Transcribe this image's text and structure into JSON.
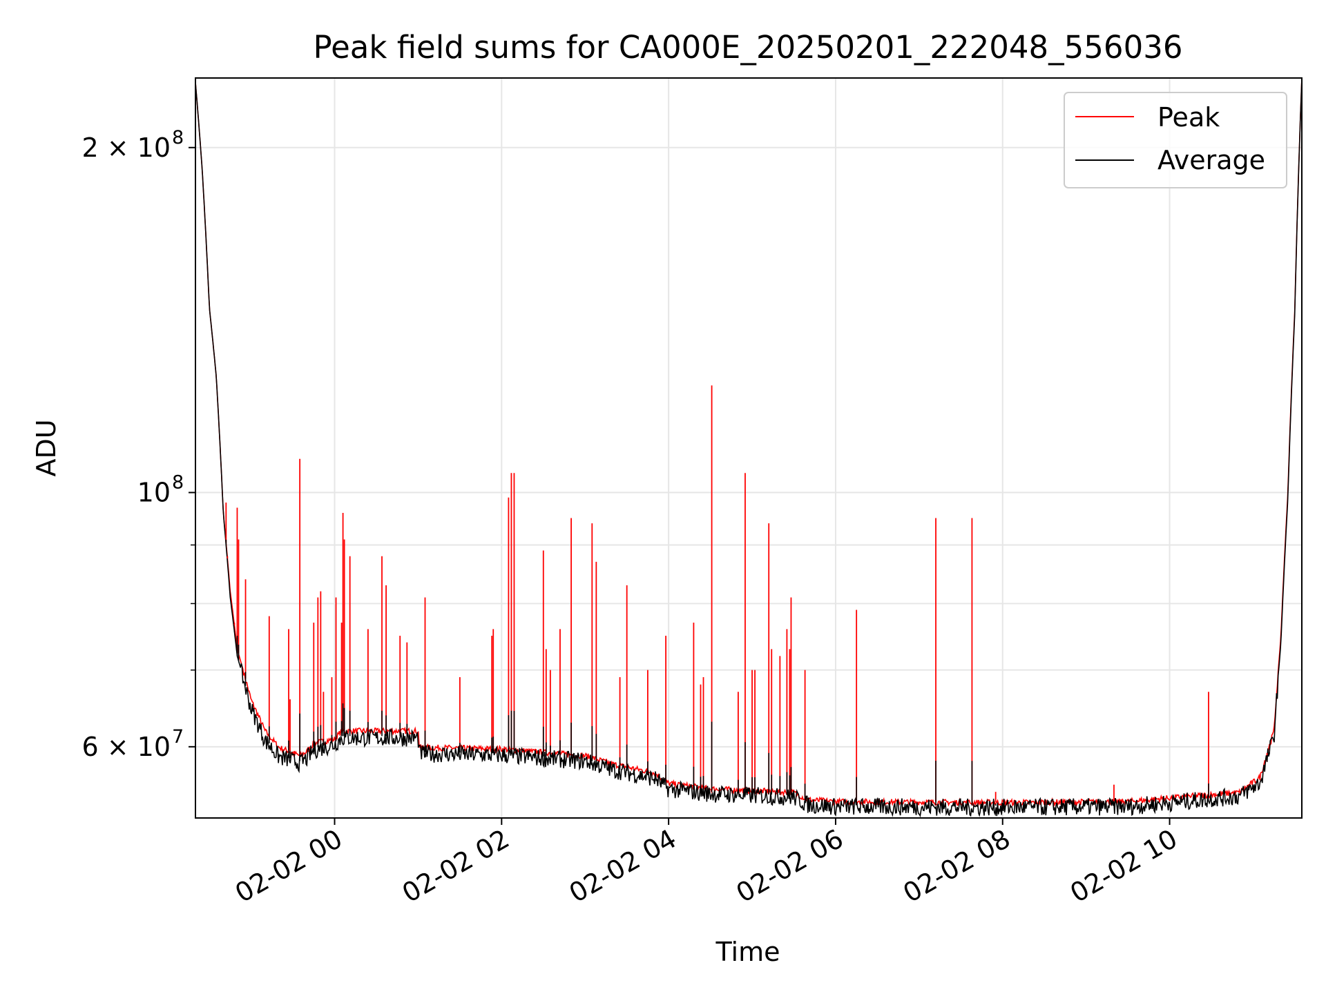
{
  "chart_data": {
    "type": "line",
    "title": "Peak field sums for CA000E_20250201_222048_556036",
    "xlabel": "Time",
    "ylabel": "ADU",
    "yscale": "log",
    "grid": true,
    "legend_position": "top-right",
    "x_range": [
      "2025-02-01 22:20",
      "2025-02-02 11:35"
    ],
    "ylim": [
      52000000,
      230000000
    ],
    "x_ticks": [
      {
        "t": "2025-02-02 00:00",
        "label": "02-02 00"
      },
      {
        "t": "2025-02-02 02:00",
        "label": "02-02 02"
      },
      {
        "t": "2025-02-02 04:00",
        "label": "02-02 04"
      },
      {
        "t": "2025-02-02 06:00",
        "label": "02-02 06"
      },
      {
        "t": "2025-02-02 08:00",
        "label": "02-02 08"
      },
      {
        "t": "2025-02-02 10:00",
        "label": "02-02 10"
      }
    ],
    "y_ticks": [
      {
        "value": 60000000,
        "base": "6 × 10",
        "exp": "7"
      },
      {
        "value": 100000000,
        "base": "10",
        "exp": "8"
      },
      {
        "value": 200000000,
        "base": "2 × 10",
        "exp": "8"
      }
    ],
    "series": [
      {
        "name": "Peak",
        "color": "#ff0000",
        "points": [
          [
            "2025-02-01 22:20",
            228000000
          ],
          [
            "2025-02-01 22:25",
            190000000
          ],
          [
            "2025-02-01 22:30",
            145000000
          ],
          [
            "2025-02-01 22:35",
            126000000
          ],
          [
            "2025-02-01 22:40",
            96000000
          ],
          [
            "2025-02-01 22:45",
            82000000
          ],
          [
            "2025-02-01 22:50",
            73000000
          ],
          [
            "2025-02-01 23:00",
            66000000
          ],
          [
            "2025-02-01 23:10",
            62000000
          ],
          [
            "2025-02-01 23:20",
            60000000
          ],
          [
            "2025-02-01 23:35",
            59000000
          ],
          [
            "2025-02-01 23:40",
            59500000
          ],
          [
            "2025-02-01 23:45",
            60500000
          ],
          [
            "2025-02-02 00:00",
            61000000
          ],
          [
            "2025-02-02 00:05",
            62000000
          ],
          [
            "2025-02-02 01:00",
            62000000
          ],
          [
            "2025-02-02 01:01",
            60000000
          ],
          [
            "2025-02-02 02:00",
            59800000
          ],
          [
            "2025-02-02 03:00",
            59000000
          ],
          [
            "2025-02-02 03:20",
            58000000
          ],
          [
            "2025-02-02 03:50",
            57000000
          ],
          [
            "2025-02-02 04:00",
            55800000
          ],
          [
            "2025-02-02 04:30",
            55200000
          ],
          [
            "2025-02-02 05:30",
            54800000
          ],
          [
            "2025-02-02 05:40",
            54000000
          ],
          [
            "2025-02-02 06:00",
            53800000
          ],
          [
            "2025-02-02 08:00",
            53700000
          ],
          [
            "2025-02-02 09:30",
            53800000
          ],
          [
            "2025-02-02 10:00",
            54200000
          ],
          [
            "2025-02-02 10:50",
            54800000
          ],
          [
            "2025-02-02 11:05",
            56500000
          ],
          [
            "2025-02-02 11:15",
            62000000
          ],
          [
            "2025-02-02 11:20",
            75000000
          ],
          [
            "2025-02-02 11:25",
            100000000
          ],
          [
            "2025-02-02 11:30",
            145000000
          ],
          [
            "2025-02-02 11:35",
            230000000
          ]
        ],
        "spikes": [
          [
            "2025-02-01 22:42",
            98000000
          ],
          [
            "2025-02-01 22:43",
            88000000
          ],
          [
            "2025-02-01 22:48",
            77000000
          ],
          [
            "2025-02-01 22:50",
            97000000
          ],
          [
            "2025-02-01 22:51",
            91000000
          ],
          [
            "2025-02-01 22:56",
            84000000
          ],
          [
            "2025-02-01 23:13",
            78000000
          ],
          [
            "2025-02-01 23:27",
            76000000
          ],
          [
            "2025-02-01 23:28",
            66000000
          ],
          [
            "2025-02-01 23:35",
            107000000
          ],
          [
            "2025-02-01 23:45",
            77000000
          ],
          [
            "2025-02-01 23:48",
            81000000
          ],
          [
            "2025-02-01 23:50",
            82000000
          ],
          [
            "2025-02-01 23:52",
            67000000
          ],
          [
            "2025-02-01 23:58",
            69000000
          ],
          [
            "2025-02-02 00:01",
            81000000
          ],
          [
            "2025-02-02 00:05",
            77000000
          ],
          [
            "2025-02-02 00:06",
            96000000
          ],
          [
            "2025-02-02 00:07",
            91000000
          ],
          [
            "2025-02-02 00:11",
            88000000
          ],
          [
            "2025-02-02 00:24",
            76000000
          ],
          [
            "2025-02-02 00:34",
            88000000
          ],
          [
            "2025-02-02 00:37",
            83000000
          ],
          [
            "2025-02-02 00:47",
            75000000
          ],
          [
            "2025-02-02 00:52",
            74000000
          ],
          [
            "2025-02-02 01:05",
            81000000
          ],
          [
            "2025-02-02 01:30",
            69000000
          ],
          [
            "2025-02-02 01:53",
            75000000
          ],
          [
            "2025-02-02 01:54",
            76000000
          ],
          [
            "2025-02-02 02:05",
            99000000
          ],
          [
            "2025-02-02 02:07",
            104000000
          ],
          [
            "2025-02-02 02:09",
            104000000
          ],
          [
            "2025-02-02 02:30",
            89000000
          ],
          [
            "2025-02-02 02:32",
            73000000
          ],
          [
            "2025-02-02 02:35",
            70000000
          ],
          [
            "2025-02-02 02:42",
            76000000
          ],
          [
            "2025-02-02 02:50",
            95000000
          ],
          [
            "2025-02-02 03:05",
            94000000
          ],
          [
            "2025-02-02 03:08",
            87000000
          ],
          [
            "2025-02-02 03:25",
            69000000
          ],
          [
            "2025-02-02 03:30",
            83000000
          ],
          [
            "2025-02-02 03:45",
            70000000
          ],
          [
            "2025-02-02 03:58",
            75000000
          ],
          [
            "2025-02-02 04:18",
            77000000
          ],
          [
            "2025-02-02 04:23",
            68000000
          ],
          [
            "2025-02-02 04:25",
            69000000
          ],
          [
            "2025-02-02 04:31",
            124000000
          ],
          [
            "2025-02-02 04:50",
            67000000
          ],
          [
            "2025-02-02 04:55",
            104000000
          ],
          [
            "2025-02-02 05:00",
            70000000
          ],
          [
            "2025-02-02 05:02",
            70000000
          ],
          [
            "2025-02-02 05:12",
            94000000
          ],
          [
            "2025-02-02 05:14",
            73000000
          ],
          [
            "2025-02-02 05:20",
            72000000
          ],
          [
            "2025-02-02 05:25",
            76000000
          ],
          [
            "2025-02-02 05:27",
            73000000
          ],
          [
            "2025-02-02 05:28",
            81000000
          ],
          [
            "2025-02-02 05:38",
            70000000
          ],
          [
            "2025-02-02 06:15",
            79000000
          ],
          [
            "2025-02-02 07:12",
            95000000
          ],
          [
            "2025-02-02 07:38",
            95000000
          ],
          [
            "2025-02-02 07:55",
            54800000
          ],
          [
            "2025-02-02 09:20",
            55600000
          ],
          [
            "2025-02-02 10:28",
            67000000
          ],
          [
            "2025-02-02 11:10",
            59000000
          ]
        ]
      },
      {
        "name": "Average",
        "color": "#000000",
        "points": [
          [
            "2025-02-01 22:20",
            228000000
          ],
          [
            "2025-02-01 22:25",
            190000000
          ],
          [
            "2025-02-01 22:30",
            145000000
          ],
          [
            "2025-02-01 22:35",
            126000000
          ],
          [
            "2025-02-01 22:40",
            96000000
          ],
          [
            "2025-02-01 22:45",
            81000000
          ],
          [
            "2025-02-01 22:50",
            72000000
          ],
          [
            "2025-02-01 23:00",
            65000000
          ],
          [
            "2025-02-01 23:10",
            61000000
          ],
          [
            "2025-02-01 23:20",
            59000000
          ],
          [
            "2025-02-01 23:35",
            58300000
          ],
          [
            "2025-02-01 23:40",
            58800000
          ],
          [
            "2025-02-01 23:45",
            59800000
          ],
          [
            "2025-02-02 00:00",
            60500000
          ],
          [
            "2025-02-02 00:05",
            61300000
          ],
          [
            "2025-02-02 01:00",
            61300000
          ],
          [
            "2025-02-02 01:01",
            59400000
          ],
          [
            "2025-02-02 02:00",
            59200000
          ],
          [
            "2025-02-02 03:00",
            58500000
          ],
          [
            "2025-02-02 03:20",
            57500000
          ],
          [
            "2025-02-02 03:50",
            56500000
          ],
          [
            "2025-02-02 04:00",
            55300000
          ],
          [
            "2025-02-02 04:30",
            54800000
          ],
          [
            "2025-02-02 05:30",
            54400000
          ],
          [
            "2025-02-02 05:40",
            53600000
          ],
          [
            "2025-02-02 06:00",
            53400000
          ],
          [
            "2025-02-02 08:00",
            53300000
          ],
          [
            "2025-02-02 09:30",
            53400000
          ],
          [
            "2025-02-02 10:00",
            53800000
          ],
          [
            "2025-02-02 10:50",
            54500000
          ],
          [
            "2025-02-02 11:05",
            56000000
          ],
          [
            "2025-02-02 11:15",
            61500000
          ],
          [
            "2025-02-02 11:20",
            74000000
          ],
          [
            "2025-02-02 11:25",
            99000000
          ],
          [
            "2025-02-02 11:30",
            144000000
          ],
          [
            "2025-02-02 11:35",
            230000000
          ]
        ]
      }
    ]
  }
}
